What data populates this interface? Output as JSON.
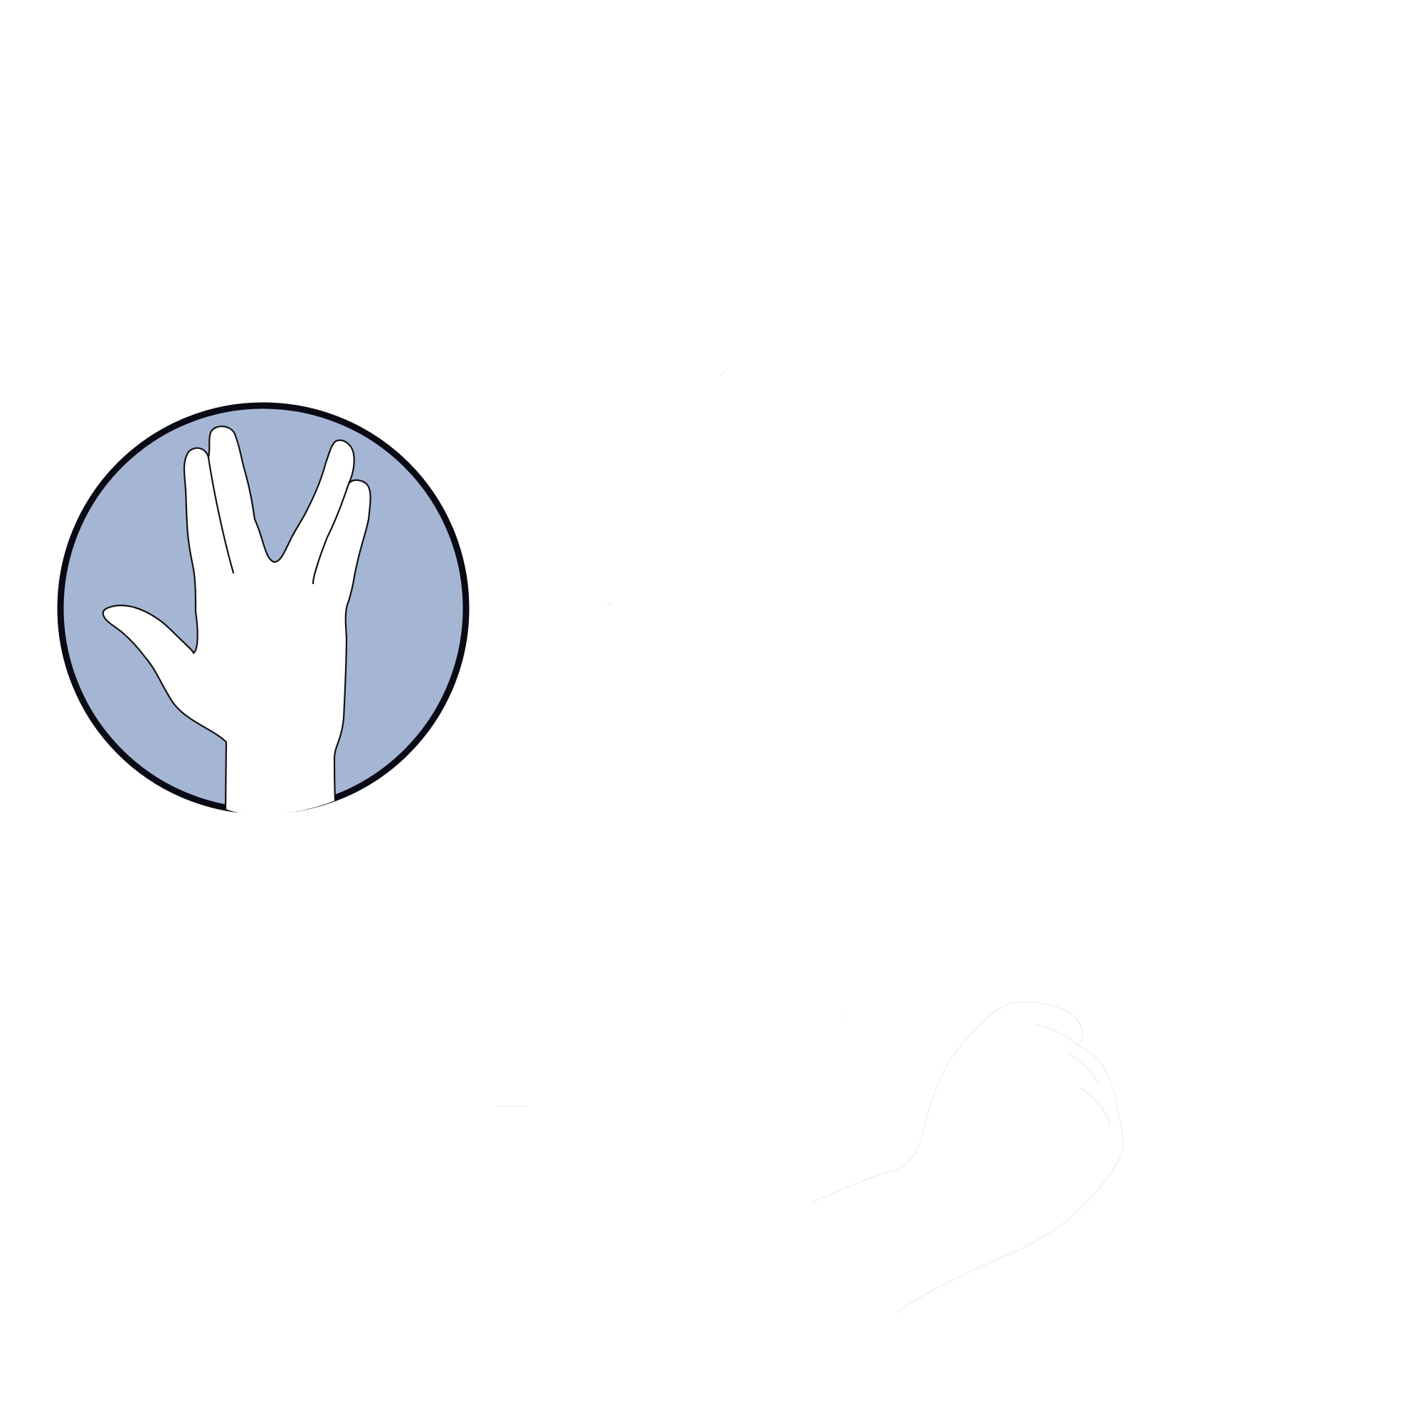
{
  "canvas": {
    "background_color": "#ffffff"
  },
  "badge": {
    "icon": "vulcan-salute-hand-icon",
    "fill_color": "#a5b6d5",
    "border_color": "#0a0a14",
    "hand_color": "#ffffff",
    "outline_color": "#111111"
  },
  "faint_figure": {
    "icon": "fist-hand-icon",
    "stroke_color": "#f2f2f2"
  }
}
